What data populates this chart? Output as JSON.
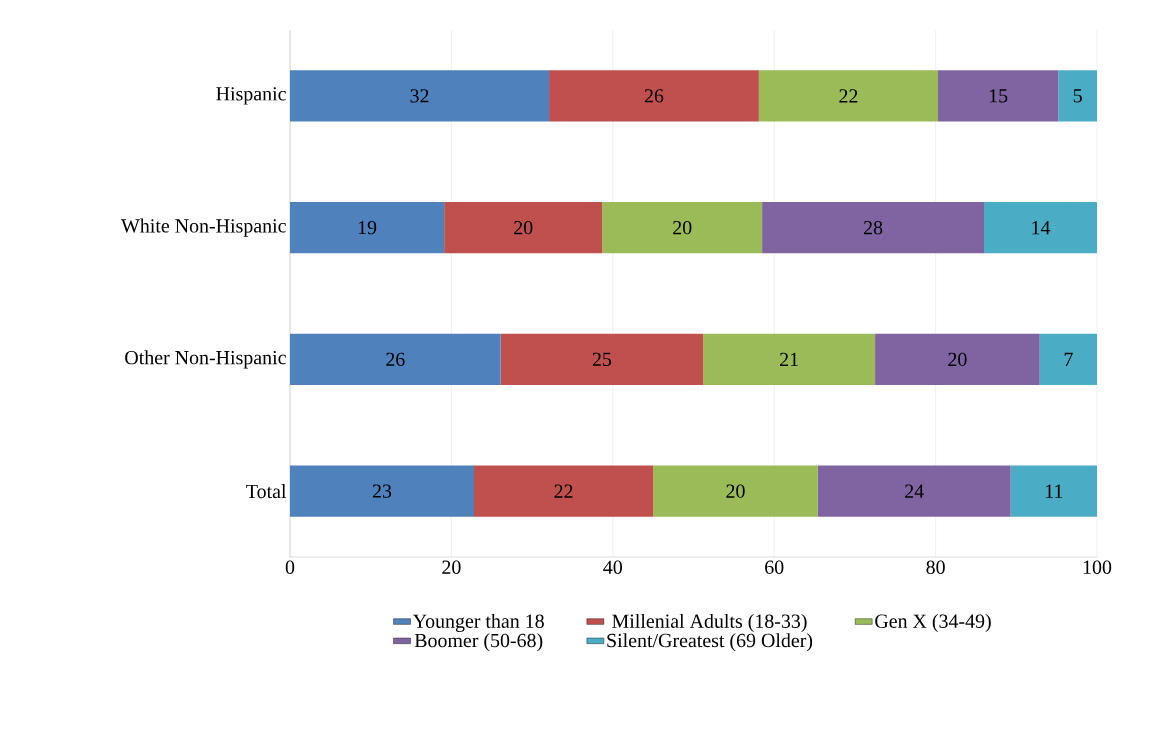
{
  "chart_data": {
    "type": "bar",
    "orientation": "horizontal",
    "stacked": true,
    "categories": [
      "Hispanic",
      "White Non-Hispanic",
      "Other Non-Hispanic",
      "Total"
    ],
    "series": [
      {
        "name": "Younger than 18",
        "color": "#4f81bd",
        "values": [
          32.1,
          19.1,
          26.1,
          22.8
        ],
        "value_labels": [
          "32",
          "19",
          "26",
          "23"
        ]
      },
      {
        "name": "Millenial Adults (18-33)",
        "color": "#c0504d",
        "values": [
          26.0,
          19.6,
          25.1,
          22.2
        ],
        "value_labels": [
          "26",
          "20",
          "25",
          "22"
        ]
      },
      {
        "name": "Gen X (34-49)",
        "color": "#9bbb59",
        "values": [
          22.2,
          19.8,
          21.3,
          20.4
        ],
        "value_labels": [
          "22",
          "20",
          "21",
          "20"
        ]
      },
      {
        "name": "Boomer (50-68)",
        "color": "#8064a2",
        "values": [
          14.9,
          27.5,
          20.4,
          23.9
        ],
        "value_labels": [
          "15",
          "28",
          "20",
          "24"
        ]
      },
      {
        "name": "Silent/Greatest (69 Older)",
        "color": "#4bacc6",
        "values": [
          4.8,
          14.0,
          7.1,
          10.7
        ],
        "value_labels": [
          "5",
          "14",
          "7",
          "11"
        ]
      }
    ],
    "xlim": [
      0,
      100
    ],
    "xticks": [
      0,
      20,
      40,
      60,
      80,
      100
    ],
    "grid": "x",
    "legend": "bottom"
  }
}
